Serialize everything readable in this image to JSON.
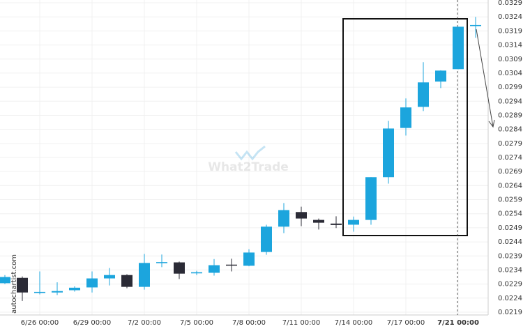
{
  "chart_data": {
    "type": "candlestick",
    "watermark": "What2Trade",
    "source": "autochartist.com",
    "categories": [
      null,
      null,
      "6/26 00:00",
      null,
      null,
      "6/29 00:00",
      null,
      null,
      "7/2 00:00",
      null,
      null,
      "7/5 00:00",
      null,
      null,
      "7/8 00:00",
      null,
      null,
      "7/11 00:00",
      null,
      null,
      "7/14 00:00",
      null,
      null,
      "7/17 00:00",
      null,
      null,
      "7/21 00:00",
      null
    ],
    "open": [
      0.02293,
      0.02312,
      0.0226,
      0.0226,
      0.02268,
      0.02278,
      0.0231,
      0.02322,
      0.0228,
      0.02367,
      0.02367,
      0.02328,
      0.0233,
      0.02359,
      0.02355,
      0.02404,
      0.02494,
      0.02546,
      0.02518,
      0.02505,
      0.02501,
      0.02518,
      0.0267,
      0.02845,
      0.0292,
      0.0301,
      0.03054,
      0.0321
    ],
    "high": [
      0.02322,
      0.02317,
      0.02335,
      0.02296,
      0.02282,
      0.02335,
      0.02347,
      0.02325,
      0.02397,
      0.02395,
      0.0237,
      0.02337,
      0.02379,
      0.0238,
      0.02414,
      0.02501,
      0.02578,
      0.02565,
      0.02523,
      0.02531,
      0.0253,
      0.0267,
      0.0287,
      0.0295,
      0.03079,
      0.0305,
      0.03205,
      0.0324
    ],
    "low": [
      0.0229,
      0.0223,
      0.02253,
      0.02251,
      0.02263,
      0.0226,
      0.02285,
      0.02275,
      0.0227,
      0.0235,
      0.02308,
      0.02322,
      0.0232,
      0.02335,
      0.02353,
      0.02394,
      0.02471,
      0.02496,
      0.02484,
      0.02489,
      0.02476,
      0.02501,
      0.02647,
      0.02818,
      0.02905,
      0.02987,
      0.03054,
      0.03166
    ],
    "close": [
      0.02315,
      0.0226,
      0.02262,
      0.02265,
      0.02277,
      0.0231,
      0.02322,
      0.0228,
      0.02365,
      0.02368,
      0.02327,
      0.02332,
      0.02357,
      0.02356,
      0.02402,
      0.02494,
      0.02553,
      0.02523,
      0.02508,
      0.025,
      0.02518,
      0.0267,
      0.02843,
      0.02918,
      0.03007,
      0.03049,
      0.03205,
      0.03211
    ],
    "up_color": "#1ca5dd",
    "down_color": "#2b2b36",
    "ylim": [
      0.0218,
      0.033
    ],
    "yticks": [
      0.0219,
      0.0224,
      0.0229,
      0.0234,
      0.0239,
      0.0244,
      0.0249,
      0.0254,
      0.0259,
      0.0264,
      0.0269,
      0.0274,
      0.0279,
      0.0284,
      0.0289,
      0.0294,
      0.0299,
      0.0304,
      0.0309,
      0.0314,
      0.0319,
      0.0324,
      0.0329
    ],
    "grid": true
  }
}
